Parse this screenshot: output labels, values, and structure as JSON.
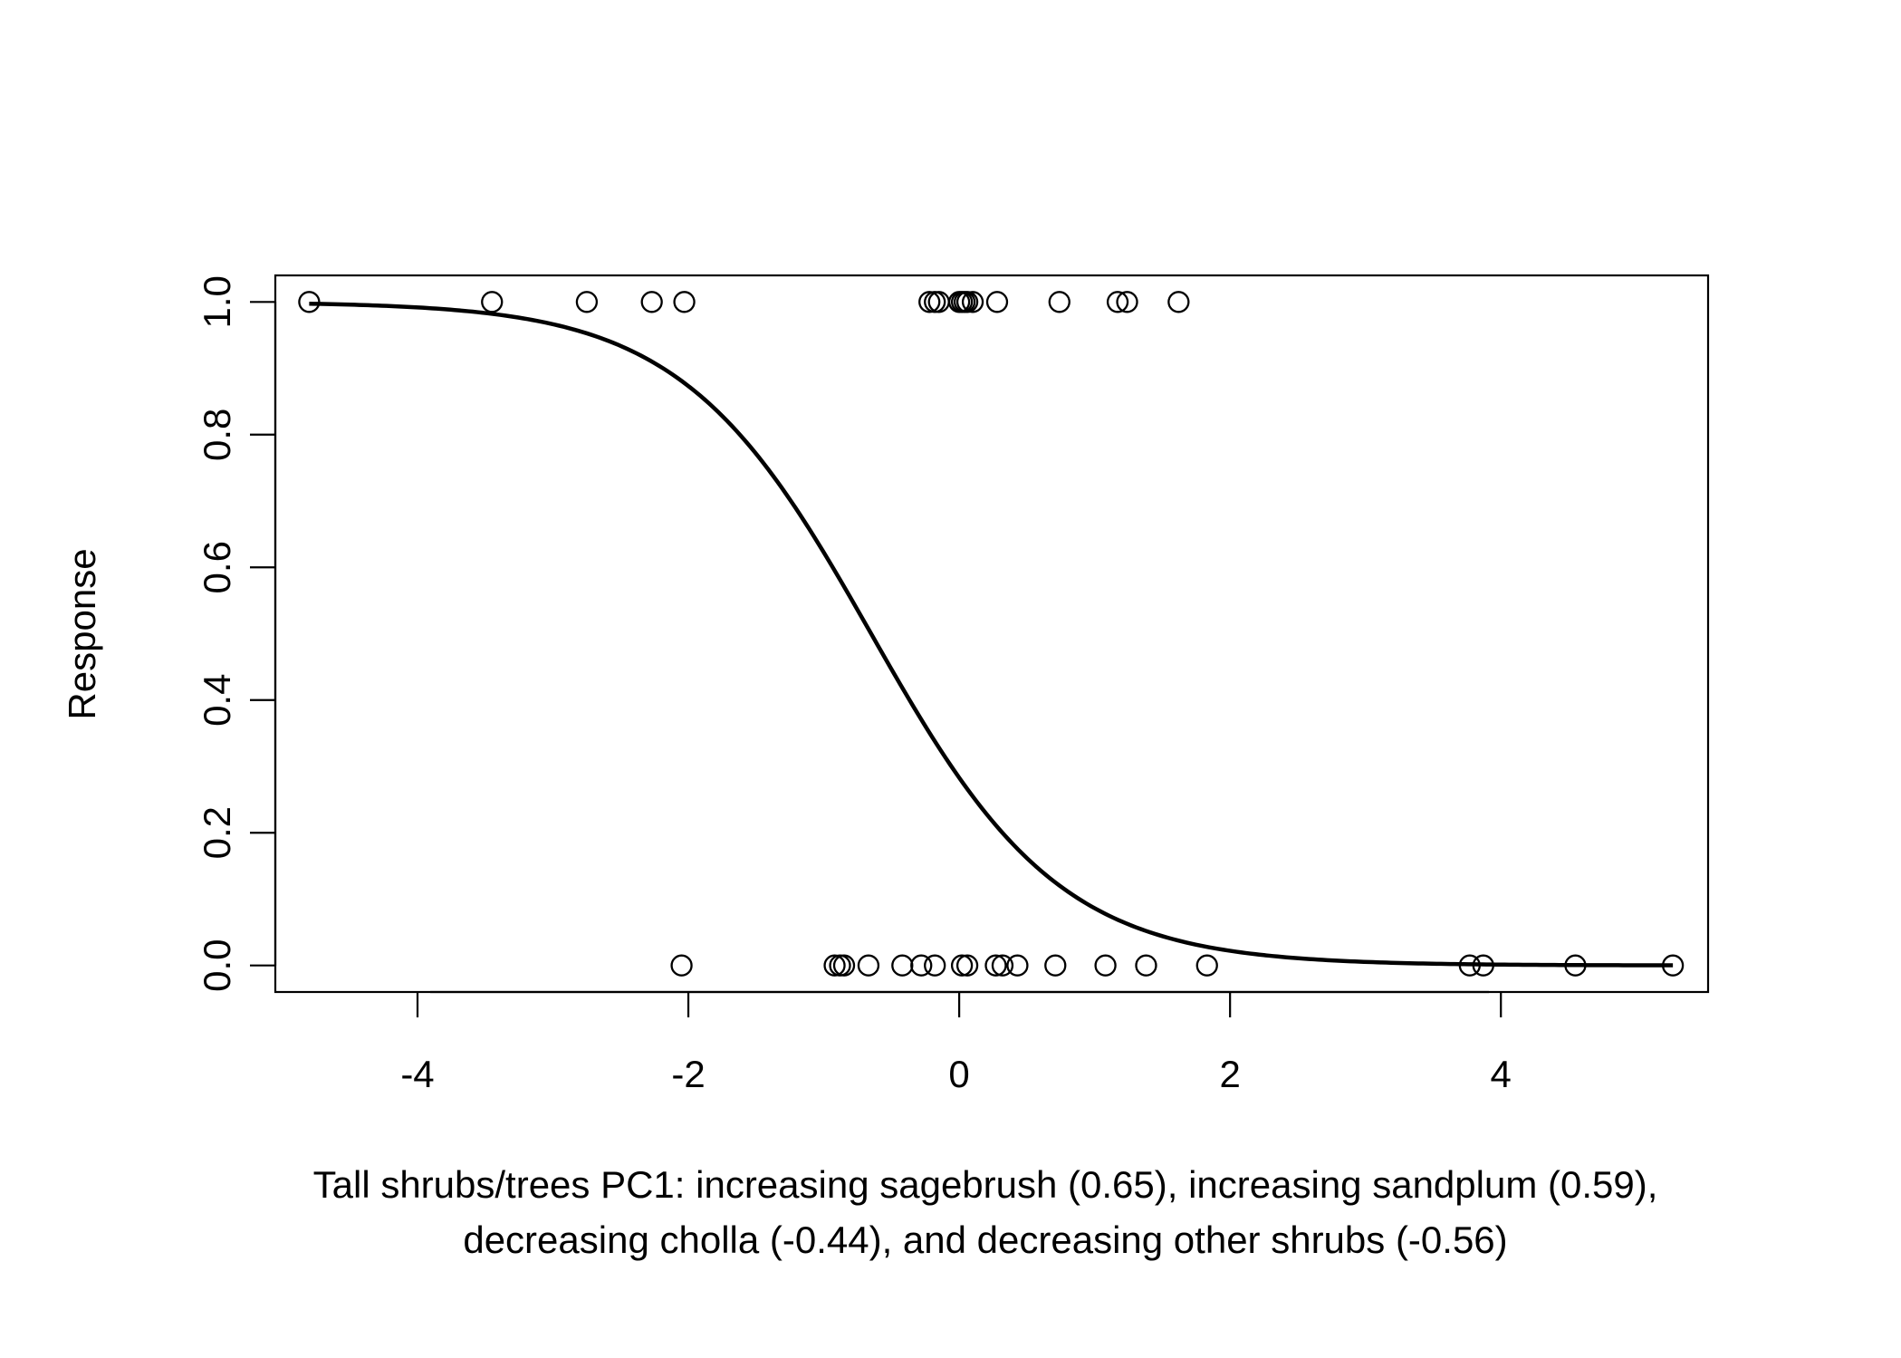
{
  "chart_data": {
    "type": "scatter",
    "title": "",
    "xlabel_lines": [
      "Tall shrubs/trees PC1: increasing sagebrush (0.65), increasing sandplum (0.59),",
      "decreasing cholla (-0.44), and decreasing other shrubs (-0.56)"
    ],
    "ylabel": "Response",
    "xlim": [
      -5.05,
      5.53
    ],
    "ylim": [
      -0.04,
      1.04
    ],
    "x_ticks": [
      -4,
      -2,
      0,
      2,
      4
    ],
    "y_ticks": [
      0.0,
      0.2,
      0.4,
      0.6,
      0.8,
      1.0
    ],
    "x_tick_labels": [
      "-4",
      "-2",
      "0",
      "2",
      "4"
    ],
    "y_tick_labels": [
      "0.0",
      "0.2",
      "0.4",
      "0.6",
      "0.8",
      "1.0"
    ],
    "grid": false,
    "box": true,
    "series": [
      {
        "kind": "points",
        "marker": "open-circle",
        "points_y1_x": [
          -4.8,
          -3.45,
          -2.75,
          -2.27,
          -2.03,
          -0.22,
          -0.18,
          -0.15,
          0.0,
          0.02,
          0.04,
          0.06,
          0.1,
          0.28,
          0.74,
          1.17,
          1.24,
          1.62
        ],
        "points_y0_x": [
          -2.05,
          -0.92,
          -0.88,
          -0.85,
          -0.67,
          -0.42,
          -0.28,
          -0.18,
          0.02,
          0.06,
          0.27,
          0.32,
          0.43,
          0.71,
          1.08,
          1.38,
          1.83,
          3.77,
          3.87,
          4.55,
          5.27
        ]
      },
      {
        "kind": "fitted-logistic-curve",
        "x_range": [
          -4.8,
          5.27
        ],
        "logit_intercept": -0.93,
        "logit_slope": -1.43
      }
    ],
    "colors": {
      "ink": "#000000",
      "background": "#ffffff"
    }
  }
}
